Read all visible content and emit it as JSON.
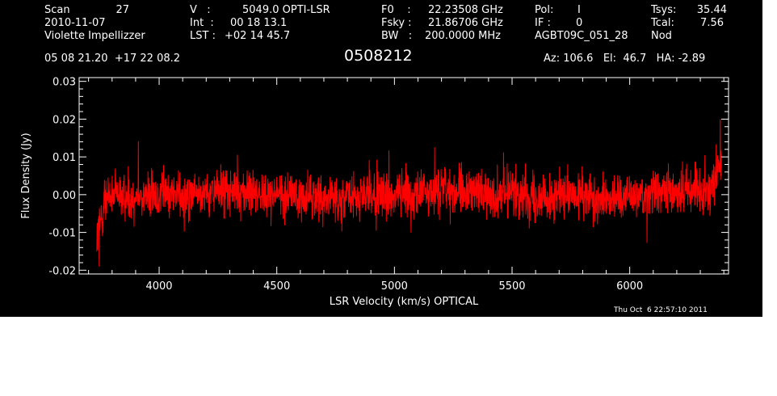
{
  "header": {
    "col1": [
      "Scan",
      "2010-11-07",
      "Violette Impellizzer"
    ],
    "scan_number": "27",
    "col2_labels": [
      "V   :",
      "Int  :",
      "LST :"
    ],
    "col2_values": [
      "5049.0 OPTI-LSR",
      "00 18 13.1",
      "+02 14 45.7"
    ],
    "col3_labels": [
      "F0    :",
      "Fsky :",
      "BW   :"
    ],
    "col3_values": [
      "22.23508 GHz",
      "21.86706 GHz",
      "200.0000 MHz"
    ],
    "col4_labels": [
      "Pol:",
      "IF :",
      "AGBT09C_051_28"
    ],
    "col4_values": [
      "I",
      "0",
      ""
    ],
    "col5_labels": [
      "Tsys:",
      "Tcal:",
      "Nod"
    ],
    "col5_values": [
      "35.44",
      "7.56",
      ""
    ],
    "coords": "05 08 21.20  +17 22 08.2",
    "source": "0508212",
    "pointing": "Az: 106.6   El:  46.7   HA: -2.89",
    "timestamp": "Thu Oct  6 22:57:10 2011"
  },
  "colors": {
    "background": "#000000",
    "axes": "#ffffff",
    "spectrum": "#ff0000"
  },
  "chart_data": {
    "type": "line",
    "xlabel": "LSR Velocity (km/s) OPTICAL",
    "ylabel": "Flux Density (Jy)",
    "xlim": [
      3660,
      6420
    ],
    "ylim": [
      -0.021,
      0.031
    ],
    "xticks": [
      4000,
      4500,
      5000,
      5500,
      6000
    ],
    "xtick_labels": [
      "4000",
      "4500",
      "5000",
      "5500",
      "6000"
    ],
    "yticks": [
      -0.02,
      -0.01,
      0.0,
      0.01,
      0.02,
      0.03
    ],
    "ytick_labels": [
      "-0.02",
      "-0.01",
      "0.00",
      "0.01",
      "0.02",
      "0.03"
    ],
    "series": [
      {
        "x_start": 3735,
        "x_end": 6390,
        "noise_rms_jy": 0.004,
        "min_point": {
          "x": 3745,
          "y": -0.019
        },
        "peak_point": {
          "x": 6385,
          "y": 0.02
        }
      }
    ]
  }
}
